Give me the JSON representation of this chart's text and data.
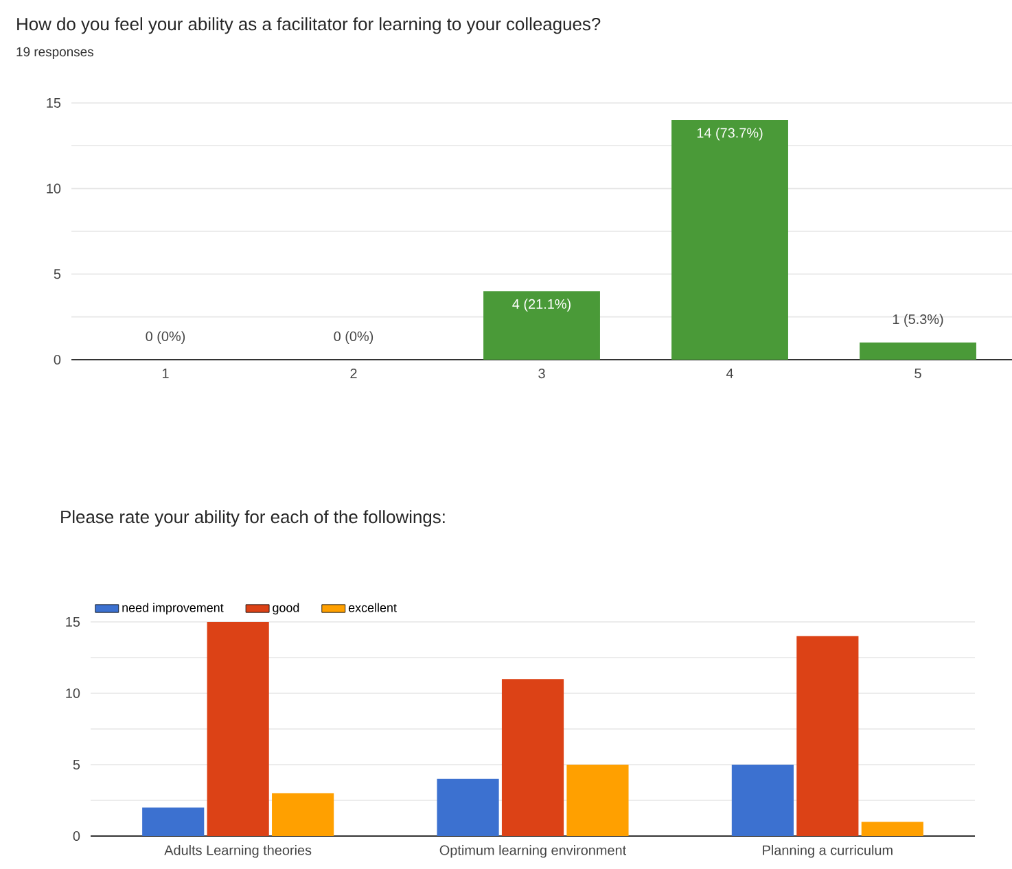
{
  "chart_data": [
    {
      "type": "bar",
      "title": "How do you feel your ability as a facilitator for learning to your colleagues?",
      "subtitle": "19 responses",
      "categories": [
        "1",
        "2",
        "3",
        "4",
        "5"
      ],
      "values": [
        0,
        0,
        4,
        14,
        1
      ],
      "value_labels": [
        "0 (0%)",
        "0 (0%)",
        "4 (21.1%)",
        "14 (73.7%)",
        "1 (5.3%)"
      ],
      "color": "#4a9a38",
      "ylim": [
        0,
        15
      ],
      "yticks": [
        0,
        {
          "value": 2.5,
          "label": null
        },
        5,
        {
          "value": 7.5,
          "label": null
        },
        10,
        {
          "value": 12.5,
          "label": null
        },
        15
      ],
      "grid": "y"
    },
    {
      "type": "bar",
      "title": "Please rate your ability for each of the followings:",
      "categories": [
        "Adults Learning theories",
        "Optimum learning environment",
        "Planning a curriculum"
      ],
      "series": [
        {
          "name": "need improvement",
          "color": "#3c71d0",
          "values": [
            2,
            4,
            5
          ]
        },
        {
          "name": "good",
          "color": "#dc4216",
          "values": [
            15,
            11,
            14
          ]
        },
        {
          "name": "excellent",
          "color": "#ffa000",
          "values": [
            3,
            5,
            1
          ]
        }
      ],
      "ylim": [
        0,
        15
      ],
      "yticks": [
        0,
        {
          "value": 2.5,
          "label": null
        },
        5,
        {
          "value": 7.5,
          "label": null
        },
        10,
        {
          "value": 12.5,
          "label": null
        },
        15
      ],
      "grid": "y",
      "legend": "top left"
    }
  ]
}
